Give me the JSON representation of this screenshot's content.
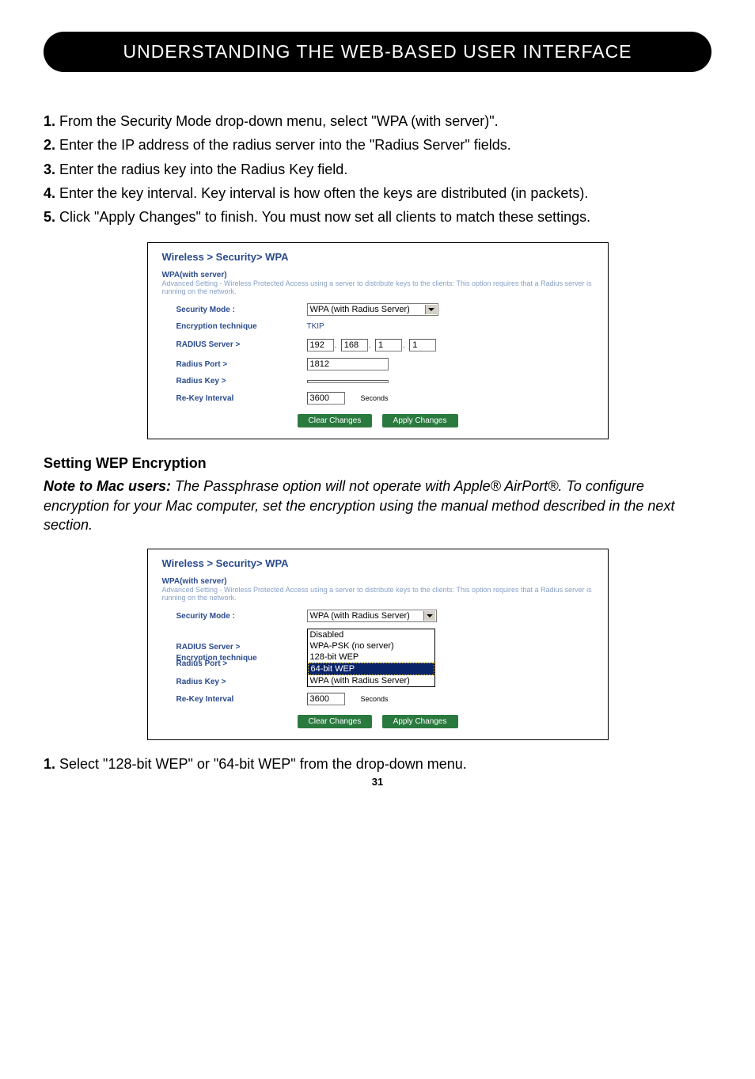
{
  "header": "UNDERSTANDING THE WEB-BASED USER INTERFACE",
  "steps_top": [
    "From the Security Mode drop-down menu, select \"WPA (with server)\".",
    "Enter the IP address of the radius server into the \"Radius Server\" fields.",
    "Enter the radius key into the Radius Key field.",
    "Enter the key interval. Key interval is how often the keys are distributed (in packets).",
    "Click \"Apply Changes\" to finish. You must now set all clients to match these settings."
  ],
  "panel1": {
    "title": "Wireless > Security> WPA",
    "subtitle": "WPA(with server)",
    "desc": "Advanced Setting - Wireless Protected Access using a server to distribute keys to the clients: This option requires that a Radius server is running on the network.",
    "rows": {
      "security_mode_label": "Security Mode :",
      "security_mode_value": "WPA (with Radius Server)",
      "encryption_label": "Encryption technique",
      "encryption_value": "TKIP",
      "radius_server_label": "RADIUS Server >",
      "radius_ip": [
        "192",
        "168",
        "1",
        "1"
      ],
      "radius_port_label": "Radius Port >",
      "radius_port_value": "1812",
      "radius_key_label": "Radius Key >",
      "radius_key_value": "",
      "rekey_label": "Re-Key Interval",
      "rekey_value": "3600",
      "seconds": "Seconds"
    },
    "buttons": {
      "clear": "Clear Changes",
      "apply": "Apply Changes"
    }
  },
  "section_heading": "Setting WEP Encryption",
  "note": {
    "label": "Note to Mac users:",
    "text": " The Passphrase option will not operate with Apple® AirPort®. To configure encryption for your Mac computer, set the encryption using the manual method described in the next section."
  },
  "panel2": {
    "title": "Wireless > Security> WPA",
    "subtitle": "WPA(with server)",
    "desc": "Advanced Setting - Wireless Protected Access using a server to distribute keys to the clients: This option requires that a Radius server is running on the network.",
    "rows": {
      "security_mode_label": "Security Mode :",
      "security_mode_value": "WPA (with Radius Server)",
      "encryption_label": "Encryption technique",
      "radius_server_label": "RADIUS Server >",
      "radius_port_label": "Radius Port >",
      "radius_key_label": "Radius Key >",
      "radius_key_value": "",
      "rekey_label": "Re-Key Interval",
      "rekey_value": "3600",
      "seconds": "Seconds"
    },
    "dropdown_options": [
      "Disabled",
      "WPA-PSK (no server)",
      "128-bit WEP",
      "64-bit WEP",
      "WPA (with Radius Server)"
    ],
    "dropdown_highlight_index": 3,
    "buttons": {
      "clear": "Clear Changes",
      "apply": "Apply Changes"
    }
  },
  "final_step": "Select \"128-bit WEP\" or \"64-bit WEP\" from the drop-down menu.",
  "page_number": "31"
}
